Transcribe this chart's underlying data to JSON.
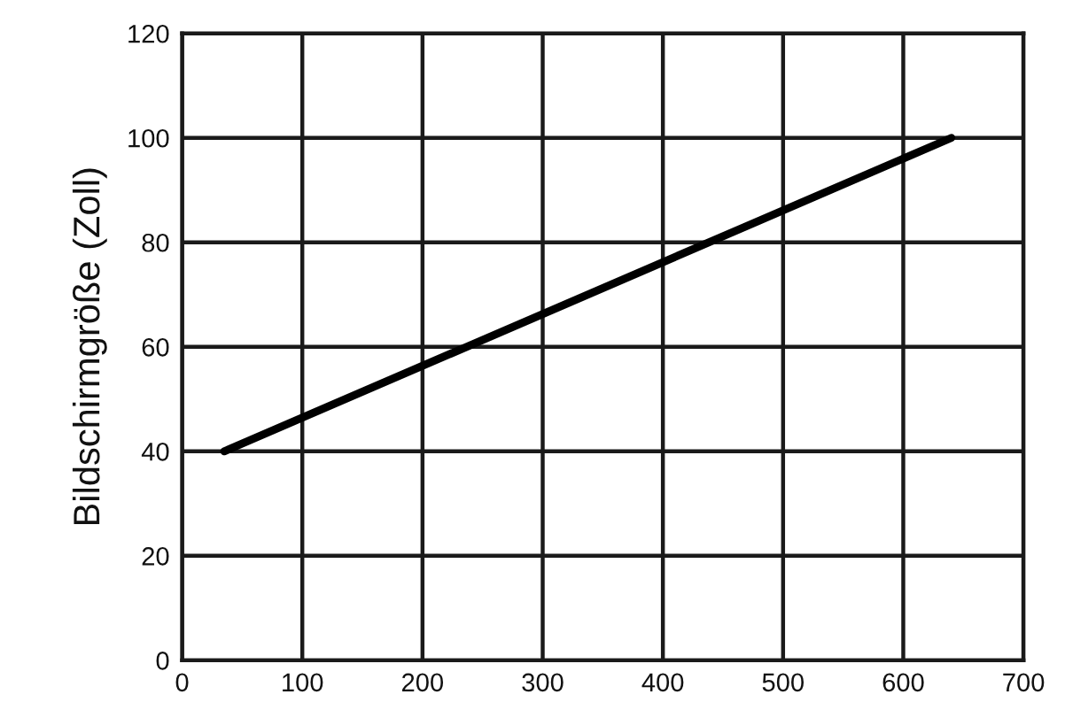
{
  "chart_data": {
    "type": "line",
    "ylabel": "Bildschirmgröße (Zoll)",
    "x": [
      35,
      640
    ],
    "series": [
      {
        "color": "#000000",
        "values": [
          40,
          100
        ]
      }
    ],
    "xlim": [
      0,
      700
    ],
    "xticks": [
      0,
      100,
      200,
      300,
      400,
      500,
      600,
      700
    ],
    "ylim": [
      0,
      120
    ],
    "yticks": [
      0,
      20,
      40,
      60,
      80,
      100,
      120
    ],
    "grid": true,
    "line_style": "solid"
  }
}
